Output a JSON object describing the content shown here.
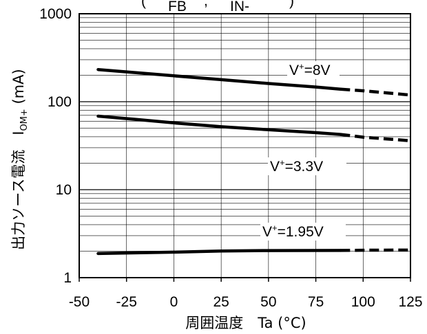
{
  "chart_data": {
    "type": "line",
    "xlabel": "周囲温度　Ta (°C)",
    "ylabel": "出力ソース電流　I",
    "ylabel_sub": "OM+",
    "ylabel_unit": "(mA)",
    "x_ticks": [
      "-50",
      "-25",
      "0",
      "25",
      "50",
      "75",
      "100",
      "125"
    ],
    "y_ticks": [
      "1",
      "10",
      "100",
      "1000"
    ],
    "xlim": [
      -50,
      125
    ],
    "ylim": [
      1,
      1000
    ],
    "yscale": "log",
    "grid": true,
    "series": [
      {
        "name": "V+=8V",
        "label_main": "V",
        "label_sup": "+",
        "label_rest": "=8V",
        "solid": {
          "x": [
            -40,
            -20,
            0,
            25,
            50,
            75,
            88
          ],
          "y": [
            232,
            214,
            197,
            178,
            161,
            147,
            139
          ]
        },
        "dashed": {
          "x": [
            88,
            100,
            125
          ],
          "y": [
            139,
            133,
            119
          ]
        }
      },
      {
        "name": "V+=3.3V",
        "label_main": "V",
        "label_sup": "+",
        "label_rest": "=3.3V",
        "solid": {
          "x": [
            -40,
            -20,
            0,
            25,
            50,
            75,
            88
          ],
          "y": [
            68.5,
            63,
            57.5,
            52,
            48,
            44.5,
            42.5
          ]
        },
        "dashed": {
          "x": [
            88,
            100,
            125
          ],
          "y": [
            42.5,
            39.5,
            36
          ]
        }
      },
      {
        "name": "V+=1.95V",
        "label_main": "V",
        "label_sup": "+",
        "label_rest": "=1.95V",
        "solid": {
          "x": [
            -40,
            0,
            25,
            50,
            88
          ],
          "y": [
            1.88,
            1.95,
            2.01,
            2.03,
            2.04
          ]
        },
        "dashed": {
          "x": [
            88,
            100,
            125
          ],
          "y": [
            2.04,
            2.05,
            2.06
          ]
        }
      }
    ],
    "header_partial": {
      "open": "(",
      "sub1": "FB",
      "comma": ",",
      "sub2": "IN-",
      "close": ")"
    }
  }
}
